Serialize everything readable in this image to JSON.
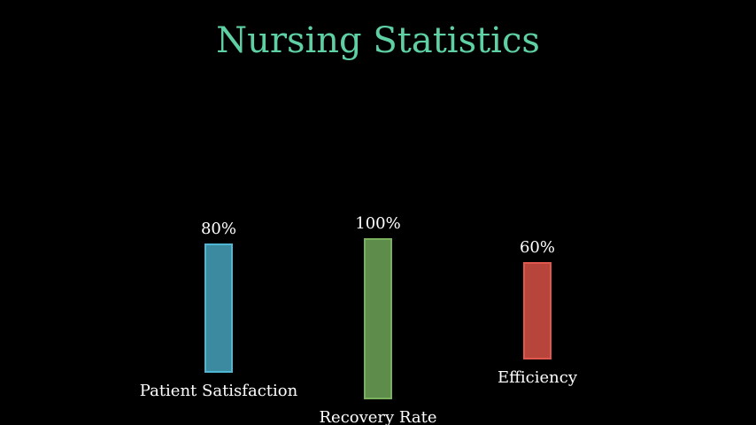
{
  "colors": {
    "background": "#000000",
    "title": "#5fd0a4",
    "text": "#ffffff"
  },
  "chart_data": {
    "type": "bar",
    "title": "Nursing Statistics",
    "xlabel": "",
    "ylabel": "",
    "ylim": [
      0,
      100
    ],
    "grid": false,
    "categories": [
      "Patient Satisfaction",
      "Recovery Rate",
      "Efficiency"
    ],
    "values": [
      80,
      100,
      60
    ],
    "value_labels": [
      "80%",
      "100%",
      "60%"
    ],
    "colors": [
      "#3b8aa0",
      "#5e8c4a",
      "#b8453c"
    ],
    "border_colors": [
      "#4fb6d4",
      "#78b05e",
      "#e0584d"
    ]
  }
}
